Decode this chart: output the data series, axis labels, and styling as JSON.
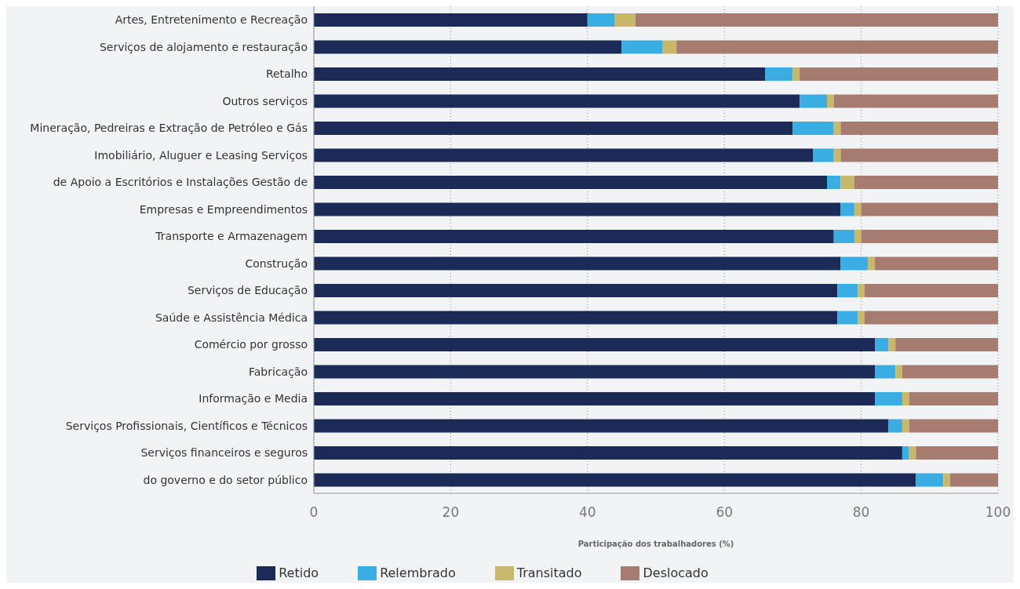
{
  "chart_data": {
    "type": "bar",
    "orientation": "horizontal",
    "stacked": true,
    "xlabel": "Participação dos trabalhadores (%)",
    "categories": [
      "Artes, Entretenimento e Recreação",
      "Serviços de alojamento e restauração",
      "Retalho",
      "Outros serviços",
      "Mineração, Pedreiras e Extração de Petróleo e Gás",
      "Imobiliário, Aluguer e Leasing Serviços",
      "de Apoio a Escritórios e Instalações Gestão de",
      "Empresas e Empreendimentos",
      "Transporte e Armazenagem",
      "Construção",
      "Serviços de Educação",
      "Saúde e Assistência Médica",
      "Comércio por grosso",
      "Fabricação",
      "Informação e Media",
      "Serviços Profissionais, Científicos e Técnicos",
      "Serviços financeiros e seguros",
      "do governo e do setor público"
    ],
    "series": [
      {
        "name": "Retido",
        "color": "#1b2a57",
        "values": [
          40,
          45,
          66,
          71,
          70,
          73,
          75,
          77,
          76,
          77,
          76.5,
          76.5,
          82,
          82,
          82,
          84,
          86,
          88
        ]
      },
      {
        "name": "Relembrado",
        "color": "#3aaee3",
        "values": [
          4,
          6,
          4,
          4,
          6,
          3,
          2,
          2,
          3,
          4,
          3,
          3,
          2,
          3,
          4,
          2,
          1,
          4
        ]
      },
      {
        "name": "Transitado",
        "color": "#c8b96a",
        "values": [
          3,
          2,
          1,
          1,
          1,
          1,
          2,
          1,
          1,
          1,
          1,
          1,
          1,
          1,
          1,
          1,
          1,
          1
        ]
      },
      {
        "name": "Deslocado",
        "color": "#a67c70",
        "values": [
          53,
          47,
          29,
          24,
          23,
          23,
          21,
          20,
          20,
          18,
          19.5,
          19.5,
          15,
          14,
          13,
          13,
          12,
          7
        ]
      }
    ],
    "xlim": [
      0,
      100
    ],
    "xticks": [
      0,
      20,
      40,
      60,
      80,
      100
    ],
    "grid": "x",
    "legend": "bottom"
  }
}
